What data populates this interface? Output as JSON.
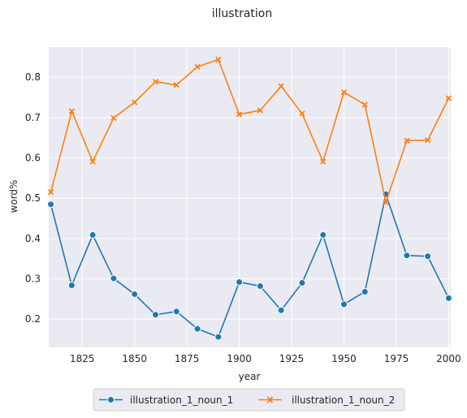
{
  "chart_data": {
    "type": "line",
    "title": "illustration",
    "xlabel": "year",
    "ylabel": "word%",
    "xlim": [
      1809,
      2001
    ],
    "ylim": [
      0.13,
      0.875
    ],
    "xticks": [
      1825,
      1850,
      1875,
      1900,
      1925,
      1950,
      1975,
      2000
    ],
    "yticks": [
      0.2,
      0.3,
      0.4,
      0.5,
      0.6,
      0.7,
      0.8
    ],
    "ytick_labels": [
      "0.2",
      "0.3",
      "0.4",
      "0.5",
      "0.6",
      "0.7",
      "0.8"
    ],
    "grid": true,
    "legend_position": "bottom-center-outside",
    "x": [
      1810,
      1820,
      1830,
      1840,
      1850,
      1860,
      1870,
      1880,
      1890,
      1900,
      1910,
      1920,
      1930,
      1940,
      1950,
      1960,
      1970,
      1980,
      1990,
      2000
    ],
    "series": [
      {
        "name": "illustration_1_noun_1",
        "color": "#1f77b4",
        "marker": "circle",
        "values": [
          0.485,
          0.284,
          0.409,
          0.301,
          0.262,
          0.211,
          0.219,
          0.176,
          0.156,
          0.292,
          0.282,
          0.222,
          0.29,
          0.409,
          0.237,
          0.268,
          0.51,
          0.358,
          0.356,
          0.252
        ]
      },
      {
        "name": "illustration_1_noun_2",
        "color": "#ff7f0e",
        "marker": "x",
        "values": [
          0.515,
          0.716,
          0.591,
          0.699,
          0.738,
          0.789,
          0.781,
          0.826,
          0.844,
          0.708,
          0.718,
          0.778,
          0.71,
          0.591,
          0.763,
          0.732,
          0.49,
          0.643,
          0.644,
          0.748
        ]
      }
    ]
  }
}
